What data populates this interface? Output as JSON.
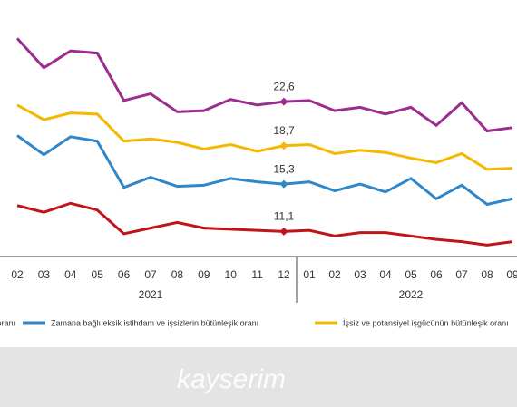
{
  "chart_data": {
    "type": "line",
    "categories": [
      "02",
      "03",
      "04",
      "05",
      "06",
      "07",
      "08",
      "09",
      "10",
      "11",
      "12",
      "01",
      "02",
      "03",
      "04",
      "05",
      "06",
      "07",
      "08",
      "09"
    ],
    "groups": [
      {
        "label": "2021",
        "count": 11
      },
      {
        "label": "2022",
        "count": 9
      }
    ],
    "ylim": [
      8,
      30
    ],
    "series": [
      {
        "color": "#9b2d8f",
        "values": [
          28.2,
          25.6,
          27.1,
          26.9,
          22.7,
          23.3,
          21.7,
          21.8,
          22.8,
          22.3,
          22.6,
          22.7,
          21.8,
          22.1,
          21.5,
          22.1,
          20.5,
          22.5,
          20.0,
          20.3
        ],
        "value_labels": [
          null,
          null,
          null,
          null,
          null,
          null,
          null,
          null,
          null,
          null,
          "22,6",
          null,
          null,
          null,
          null,
          null,
          null,
          null,
          null,
          null
        ]
      },
      {
        "name": "İşsiz ve potansiyel işgücünün bütünleşik oranı",
        "color": "#f5b800",
        "values": [
          22.3,
          21.0,
          21.6,
          21.5,
          19.1,
          19.3,
          19.0,
          18.4,
          18.8,
          18.2,
          18.7,
          18.8,
          18.0,
          18.3,
          18.1,
          17.6,
          17.2,
          18.0,
          16.6,
          16.7
        ],
        "value_labels": [
          null,
          null,
          null,
          null,
          null,
          null,
          null,
          null,
          null,
          null,
          "18,7",
          null,
          null,
          null,
          null,
          null,
          null,
          null,
          null,
          null
        ]
      },
      {
        "name": "Zamana bağlı eksik istihdam ve işsizlerin bütünleşik oranı",
        "color": "#2f86c9",
        "values": [
          19.6,
          17.9,
          19.5,
          19.1,
          15.0,
          15.9,
          15.1,
          15.2,
          15.8,
          15.5,
          15.3,
          15.5,
          14.7,
          15.3,
          14.6,
          15.8,
          14.0,
          15.2,
          13.5,
          14.0
        ],
        "value_labels": [
          null,
          null,
          null,
          null,
          null,
          null,
          null,
          null,
          null,
          null,
          "15,3",
          null,
          null,
          null,
          null,
          null,
          null,
          null,
          null,
          null
        ]
      },
      {
        "name": "oranı",
        "color": "#c0141c",
        "values": [
          13.4,
          12.8,
          13.6,
          13.0,
          10.9,
          11.4,
          11.9,
          11.4,
          11.3,
          11.2,
          11.1,
          11.2,
          10.7,
          11.0,
          11.0,
          10.7,
          10.4,
          10.2,
          9.9,
          10.2
        ],
        "value_labels": [
          null,
          null,
          null,
          null,
          null,
          null,
          null,
          null,
          null,
          null,
          "11,1",
          null,
          null,
          null,
          null,
          null,
          null,
          null,
          null,
          null
        ]
      }
    ]
  },
  "watermark": "kayserim"
}
